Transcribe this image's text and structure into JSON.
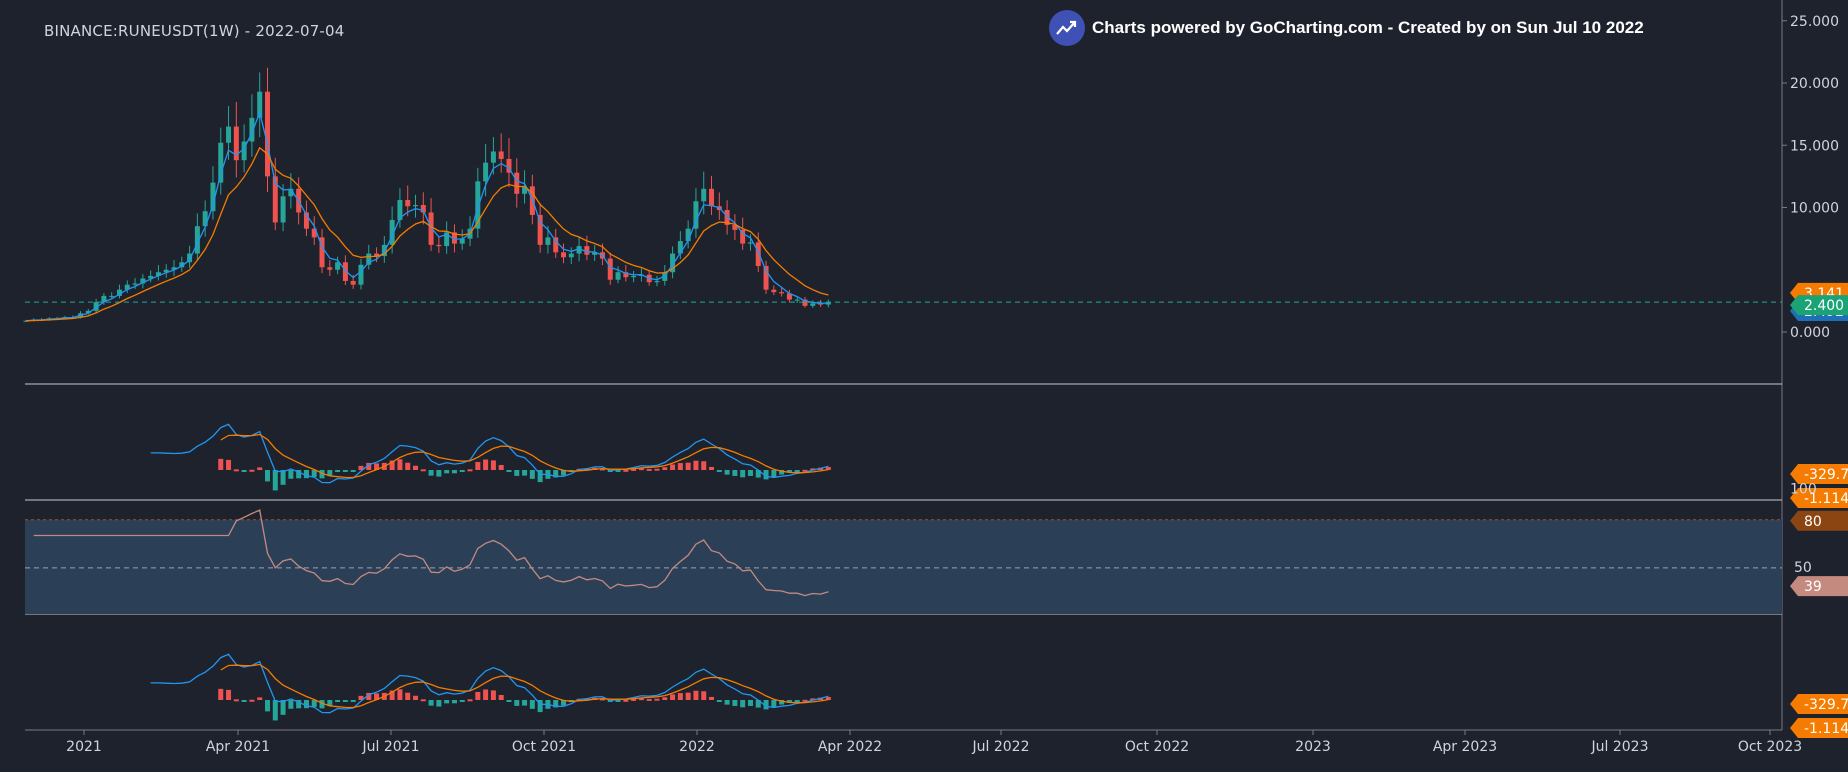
{
  "header": {
    "title": "BINANCE:RUNEUSDT(1W) - 2022-07-04",
    "attribution": "Charts powered by GoCharting.com - Created by  on Sun Jul 10 2022"
  },
  "colors": {
    "background": "#1e222d",
    "up": "#26a69a",
    "down": "#ef5350",
    "ema_fast": "#2196f3",
    "ema_slow": "#f57c00",
    "macd_line": "#2196f3",
    "signal_line": "#f57c00",
    "rsi_line": "#c48a80",
    "rsi_band": "#2b3f57",
    "price_line": "#26a69a",
    "badge_orange": "#f57c00",
    "badge_blue": "#1e6fb8",
    "badge_green": "#1aa375",
    "badge_brown": "#8b4513",
    "badge_pink": "#c48a80"
  },
  "chart_data": [
    {
      "type": "candlestick",
      "title": "BINANCE:RUNEUSDT(1W) - 2022-07-04",
      "x_axis_ticks": [
        "2021",
        "Apr 2021",
        "Jul 2021",
        "Oct 2021",
        "2022",
        "Apr 2022",
        "Jul 2022",
        "Oct 2022",
        "2023",
        "Apr 2023",
        "Jul 2023",
        "Oct 2023"
      ],
      "y_axis_ticks": [
        "25.000",
        "20.000",
        "15.000",
        "10.000",
        "0.000"
      ],
      "ylim": [
        0,
        25
      ],
      "close_series": [
        0.9,
        1.0,
        1.0,
        1.1,
        1.1,
        1.2,
        1.2,
        1.5,
        1.7,
        2.4,
        2.9,
        2.9,
        3.4,
        3.8,
        3.9,
        4.3,
        4.5,
        4.8,
        5.0,
        5.2,
        5.6,
        6.3,
        8.5,
        9.7,
        12.0,
        15.2,
        16.5,
        13.8,
        15.3,
        17.2,
        19.3,
        12.5,
        8.8,
        10.9,
        11.5,
        9.6,
        8.3,
        7.6,
        5.2,
        5.0,
        5.6,
        4.1,
        3.8,
        5.4,
        6.3,
        6.1,
        7.0,
        9.0,
        10.6,
        10.1,
        10.2,
        9.6,
        7.0,
        6.9,
        8.0,
        7.1,
        7.5,
        8.3,
        12.1,
        13.6,
        14.5,
        13.9,
        12.8,
        11.1,
        11.7,
        9.4,
        7.0,
        7.6,
        6.4,
        6.0,
        6.3,
        6.9,
        6.2,
        6.4,
        5.9,
        4.2,
        4.8,
        4.4,
        4.5,
        4.6,
        4.0,
        4.1,
        4.8,
        6.3,
        7.3,
        8.3,
        10.5,
        11.5,
        10.1,
        9.8,
        8.6,
        8.2,
        7.1,
        7.2,
        5.3,
        3.4,
        3.2,
        3.1,
        2.6,
        2.6,
        2.1,
        2.3,
        2.2,
        2.4
      ],
      "series": [
        {
          "name": "",
          "kind": "ema_fast",
          "last_value": "2.492"
        },
        {
          "name": "",
          "kind": "ema_slow",
          "last_value": "3.141"
        },
        {
          "name": "",
          "kind": "last_price",
          "last_value": "2.400"
        }
      ]
    },
    {
      "type": "macd",
      "panel": "upper",
      "labels": [
        "-329.7m",
        "-1.114"
      ]
    },
    {
      "type": "rsi",
      "levels": [
        "100",
        "80",
        "50"
      ],
      "last_value": "39",
      "band": [
        50,
        80
      ]
    },
    {
      "type": "macd",
      "panel": "lower",
      "labels": [
        "-329.7m",
        "-1.114"
      ]
    }
  ]
}
